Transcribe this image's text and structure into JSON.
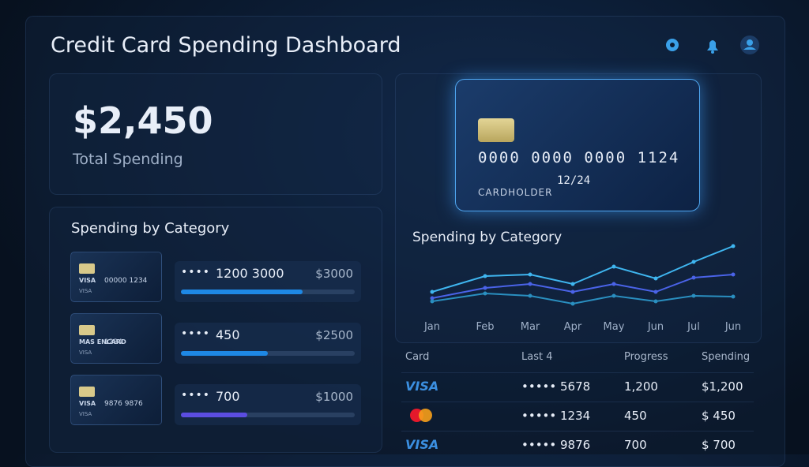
{
  "header": {
    "title": "Credit Card Spending Dashboard"
  },
  "summary": {
    "amount": "$2,450",
    "label": "Total Spending"
  },
  "category_panel": {
    "title": "Spending by Category",
    "rows": [
      {
        "card": {
          "brand": "VISA",
          "number": "00000 1234",
          "footer": "VISA"
        },
        "mask": "••••",
        "number": "1200 3000",
        "amount": "$3000",
        "progress": 70,
        "color": "#1e88e5"
      },
      {
        "card": {
          "brand": "MAS ENCARD",
          "number": "1234",
          "footer": "VISA"
        },
        "mask": "••••",
        "number": "450",
        "amount": "$2500",
        "progress": 50,
        "color": "#1e88e5"
      },
      {
        "card": {
          "brand": "VISA",
          "number": "9876 9876",
          "footer": "VISA"
        },
        "mask": "••••",
        "number": "700",
        "amount": "$1000",
        "progress": 38,
        "color": "#5b4de0"
      }
    ]
  },
  "card": {
    "number": "0000 0000 0000 1124",
    "expiry": "12/24",
    "holder": "CARDHOLDER"
  },
  "chart_data": {
    "type": "line",
    "title": "Spending by Category",
    "categories": [
      "Jan",
      "Feb",
      "Mar",
      "Apr",
      "May",
      "Jun",
      "Jul",
      "Jun"
    ],
    "series": [
      {
        "color": "#3fb6f0",
        "values": [
          30,
          50,
          52,
          40,
          62,
          47,
          68,
          88
        ]
      },
      {
        "color": "#4a63e8",
        "values": [
          22,
          35,
          40,
          30,
          40,
          30,
          48,
          52
        ]
      },
      {
        "color": "#2a8fc0",
        "values": [
          18,
          28,
          25,
          15,
          25,
          18,
          25,
          24
        ]
      }
    ],
    "ylim": [
      0,
      100
    ]
  },
  "table": {
    "columns": [
      "Card",
      "Last 4",
      "Progress",
      "Spending"
    ],
    "rows": [
      {
        "brand": "VISA",
        "last4": "••••• 5678",
        "progress": "1,200",
        "spending": "$1,200"
      },
      {
        "last4": "••••• 1234",
        "progress": "450",
        "spending": "$ 450"
      },
      {
        "brand": "VISA",
        "last4": "••••• 9876",
        "progress": "700",
        "spending": "$ 700"
      }
    ]
  }
}
